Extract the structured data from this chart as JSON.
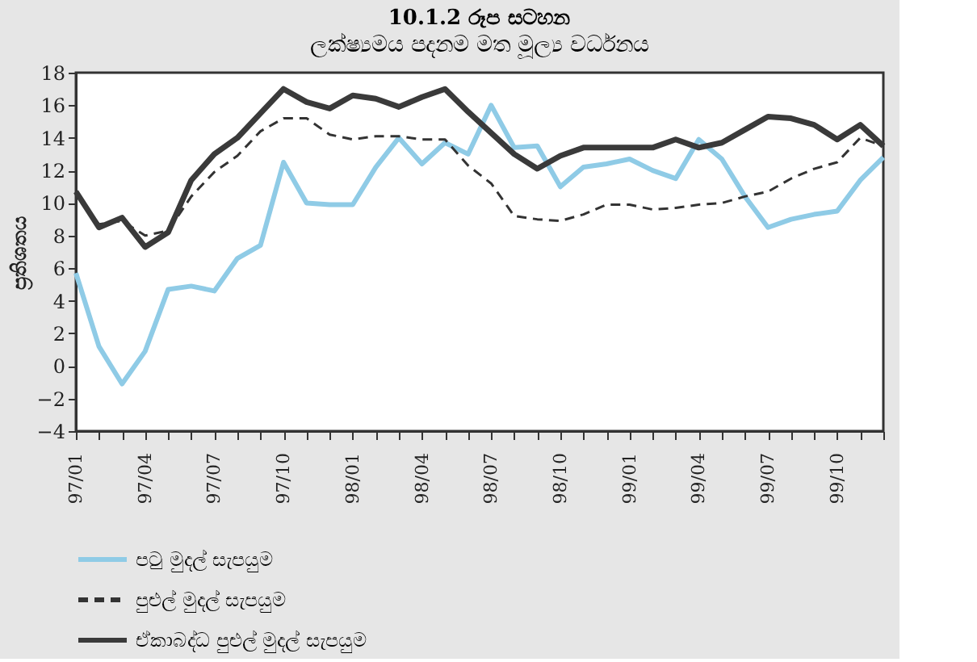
{
  "chart_data": {
    "type": "line",
    "title": "10.1.2 රූප සටහන",
    "subtitle": "ලක්ෂ්‍යමය පදනම මත මූල්‍ය වර්ධනය",
    "ylabel": "ප්‍රතිශතය",
    "categories": [
      "97/01",
      null,
      null,
      "97/04",
      null,
      null,
      "97/07",
      null,
      null,
      "97/10",
      null,
      null,
      "98/01",
      null,
      null,
      "98/04",
      null,
      null,
      "98/07",
      null,
      null,
      "98/10",
      null,
      null,
      "99/01",
      null,
      null,
      "99/04",
      null,
      null,
      "99/07",
      null,
      null,
      "99/10",
      null,
      null
    ],
    "series": [
      {
        "name": "පටු මුදල් සැපයුම",
        "color": "#8fcbe6",
        "line_style": "solid",
        "values": [
          5.7,
          1.2,
          -1.1,
          0.9,
          4.7,
          4.9,
          4.6,
          6.6,
          7.4,
          12.5,
          10.0,
          9.9,
          9.9,
          12.2,
          14.0,
          12.4,
          13.7,
          13.0,
          16.0,
          13.4,
          13.5,
          11.0,
          12.2,
          12.4,
          12.7,
          12.0,
          11.5,
          13.9,
          12.7,
          10.4,
          8.5,
          9.0,
          9.3,
          9.5,
          11.4,
          12.8
        ]
      },
      {
        "name": "පුළුල් මුදල් සැපයුම",
        "color": "#333333",
        "line_style": "dashed",
        "values": [
          10.5,
          8.7,
          8.9,
          8.0,
          8.3,
          10.4,
          11.9,
          12.9,
          14.4,
          15.2,
          15.2,
          14.2,
          13.9,
          14.1,
          14.1,
          13.9,
          13.9,
          12.3,
          11.2,
          9.2,
          9.0,
          8.9,
          9.3,
          9.9,
          9.9,
          9.6,
          9.7,
          9.9,
          10.0,
          10.4,
          10.7,
          11.5,
          12.1,
          12.5,
          14.0,
          13.5
        ]
      },
      {
        "name": "ඒකාබද්ධ පුළුල් මුදල් සැපයුම",
        "color": "#3a3a3a",
        "line_style": "solid",
        "values": [
          10.7,
          8.5,
          9.1,
          7.3,
          8.2,
          11.4,
          13.0,
          14.0,
          15.5,
          17.0,
          16.2,
          15.8,
          16.6,
          16.4,
          15.9,
          16.5,
          17.0,
          15.6,
          14.3,
          13.0,
          12.1,
          12.9,
          13.4,
          13.4,
          13.4,
          13.4,
          13.9,
          13.4,
          13.7,
          14.5,
          15.3,
          15.2,
          14.8,
          13.9,
          14.8,
          13.5
        ]
      }
    ],
    "ylim": [
      -4,
      18
    ],
    "yticks": [
      -4,
      -2,
      0,
      2,
      4,
      6,
      8,
      10,
      12,
      14,
      16,
      18
    ],
    "grid": false,
    "legend": "bottom"
  }
}
